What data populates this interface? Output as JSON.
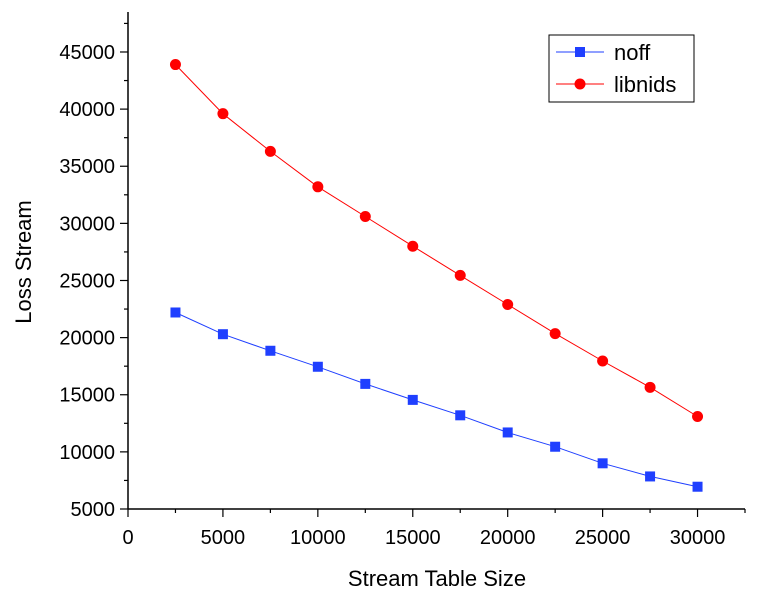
{
  "chart_data": {
    "type": "line",
    "title": "",
    "xlabel": "Stream Table Size",
    "ylabel": "Loss Stream",
    "xlim": [
      0,
      32500
    ],
    "ylim": [
      5000,
      48500
    ],
    "xticks": [
      0,
      5000,
      10000,
      15000,
      20000,
      25000,
      30000
    ],
    "yticks": [
      5000,
      10000,
      15000,
      20000,
      25000,
      30000,
      35000,
      40000,
      45000
    ],
    "x": [
      2500,
      5000,
      7500,
      10000,
      12500,
      15000,
      17500,
      20000,
      22500,
      25000,
      27500,
      30000
    ],
    "series": [
      {
        "name": "noff",
        "color": "#1f3fff",
        "marker": "square",
        "values": [
          22200,
          20300,
          18850,
          17450,
          15950,
          14550,
          13200,
          11700,
          10450,
          9000,
          7850,
          6950
        ]
      },
      {
        "name": "libnids",
        "color": "#ff0000",
        "marker": "circle",
        "values": [
          43900,
          39600,
          36300,
          33200,
          30600,
          28000,
          25450,
          22900,
          20350,
          17950,
          15650,
          13100
        ]
      }
    ],
    "grid": false,
    "legend_position": "top-right"
  }
}
